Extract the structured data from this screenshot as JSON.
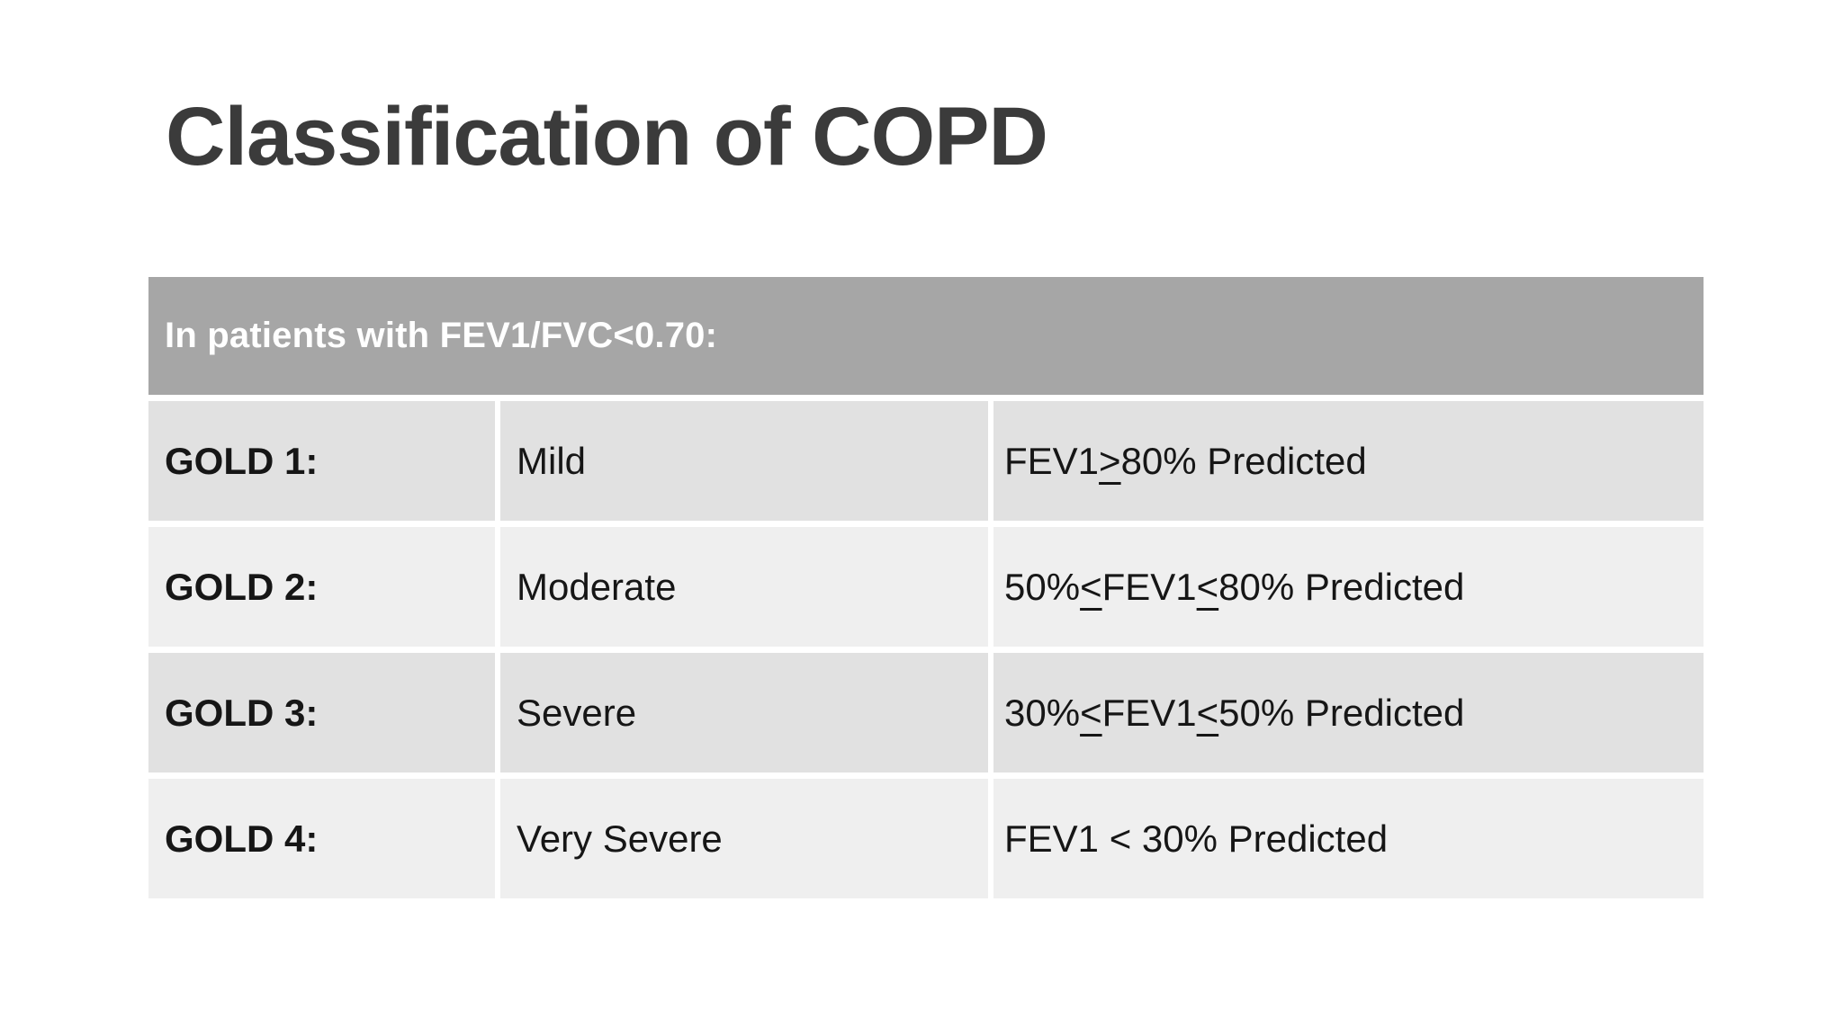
{
  "title": "Classification of COPD",
  "table": {
    "header_label": "In patients with FEV1/FVC<0.70:",
    "rows": [
      {
        "grade": "GOLD 1:",
        "severity": "Mild",
        "criteria": [
          {
            "text": "FEV1 "
          },
          {
            "text": ">",
            "underline": true
          },
          {
            "text": " 80% Predicted"
          }
        ]
      },
      {
        "grade": "GOLD 2:",
        "severity": "Moderate",
        "criteria": [
          {
            "text": "50% "
          },
          {
            "text": "<",
            "underline": true
          },
          {
            "text": " FEV1 "
          },
          {
            "text": "<",
            "underline": true
          },
          {
            "text": " 80% Predicted"
          }
        ]
      },
      {
        "grade": "GOLD 3:",
        "severity": "Severe",
        "criteria": [
          {
            "text": "30% "
          },
          {
            "text": "<",
            "underline": true
          },
          {
            "text": " FEV1 "
          },
          {
            "text": "<",
            "underline": true
          },
          {
            "text": " 50% Predicted"
          }
        ]
      },
      {
        "grade": "GOLD 4:",
        "severity": "Very Severe",
        "criteria": [
          {
            "text": "FEV1 < 30% Predicted"
          }
        ]
      }
    ]
  },
  "colors": {
    "page_bg": "#ffffff",
    "title_text": "#3b3b3b",
    "header_bg": "#a6a6a6",
    "header_text": "#ffffff",
    "row_bg_dark": "#e1e1e1",
    "row_bg_light": "#efefef",
    "body_text": "#161616"
  }
}
